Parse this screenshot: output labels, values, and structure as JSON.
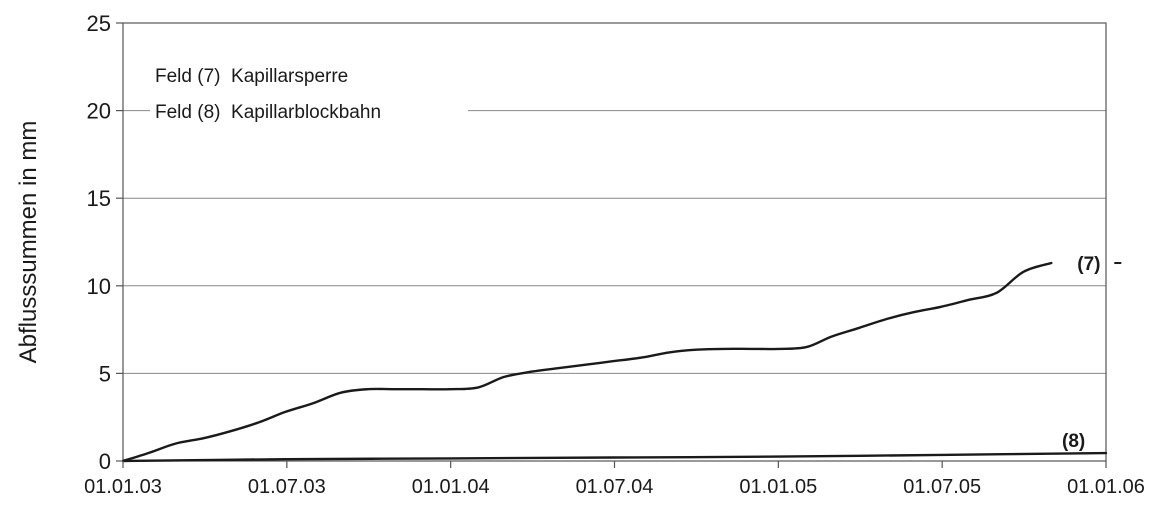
{
  "chart_data": {
    "type": "line",
    "title": "",
    "xlabel": "",
    "ylabel": "Abflusssummen in mm",
    "x_ticks": [
      "01.01.03",
      "01.07.03",
      "01.01.04",
      "01.07.04",
      "01.01.05",
      "01.07.05",
      "01.01.06"
    ],
    "xlim": [
      "2003-01-01",
      "2006-01-01"
    ],
    "ylim": [
      0,
      25
    ],
    "y_ticks": [
      0,
      5,
      10,
      15,
      20,
      25
    ],
    "grid": "horizontal",
    "legend": [
      "Feld (7)  Kapillarsperre",
      "Feld (8)  Kapillarblockbahn"
    ],
    "legend_position": "top-left",
    "series": [
      {
        "name": "(7)",
        "x": [
          "2003-01-01",
          "2003-02-01",
          "2003-03-01",
          "2003-04-01",
          "2003-05-01",
          "2003-06-01",
          "2003-07-01",
          "2003-08-01",
          "2003-09-01",
          "2003-10-01",
          "2003-11-01",
          "2003-12-01",
          "2004-01-01",
          "2004-02-01",
          "2004-03-01",
          "2004-04-01",
          "2004-05-01",
          "2004-06-01",
          "2004-07-01",
          "2004-08-01",
          "2004-09-01",
          "2004-10-01",
          "2004-11-01",
          "2004-12-01",
          "2005-01-01",
          "2005-02-01",
          "2005-03-01",
          "2005-04-01",
          "2005-05-01",
          "2005-06-01",
          "2005-07-01",
          "2005-08-01",
          "2005-09-01",
          "2005-10-01",
          "2005-11-01"
        ],
        "values": [
          0.0,
          0.5,
          1.0,
          1.3,
          1.7,
          2.2,
          2.8,
          3.3,
          3.9,
          4.1,
          4.1,
          4.1,
          4.1,
          4.2,
          4.8,
          5.1,
          5.3,
          5.5,
          5.7,
          5.9,
          6.2,
          6.35,
          6.4,
          6.4,
          6.4,
          6.5,
          7.1,
          7.6,
          8.1,
          8.5,
          8.8,
          9.2,
          9.6,
          10.8,
          11.3
        ]
      },
      {
        "name": "(8)",
        "x": [
          "2003-01-01",
          "2003-07-01",
          "2004-01-01",
          "2004-07-01",
          "2005-01-01",
          "2005-07-01",
          "2006-01-01"
        ],
        "values": [
          0.0,
          0.1,
          0.15,
          0.2,
          0.25,
          0.35,
          0.45
        ]
      }
    ]
  }
}
